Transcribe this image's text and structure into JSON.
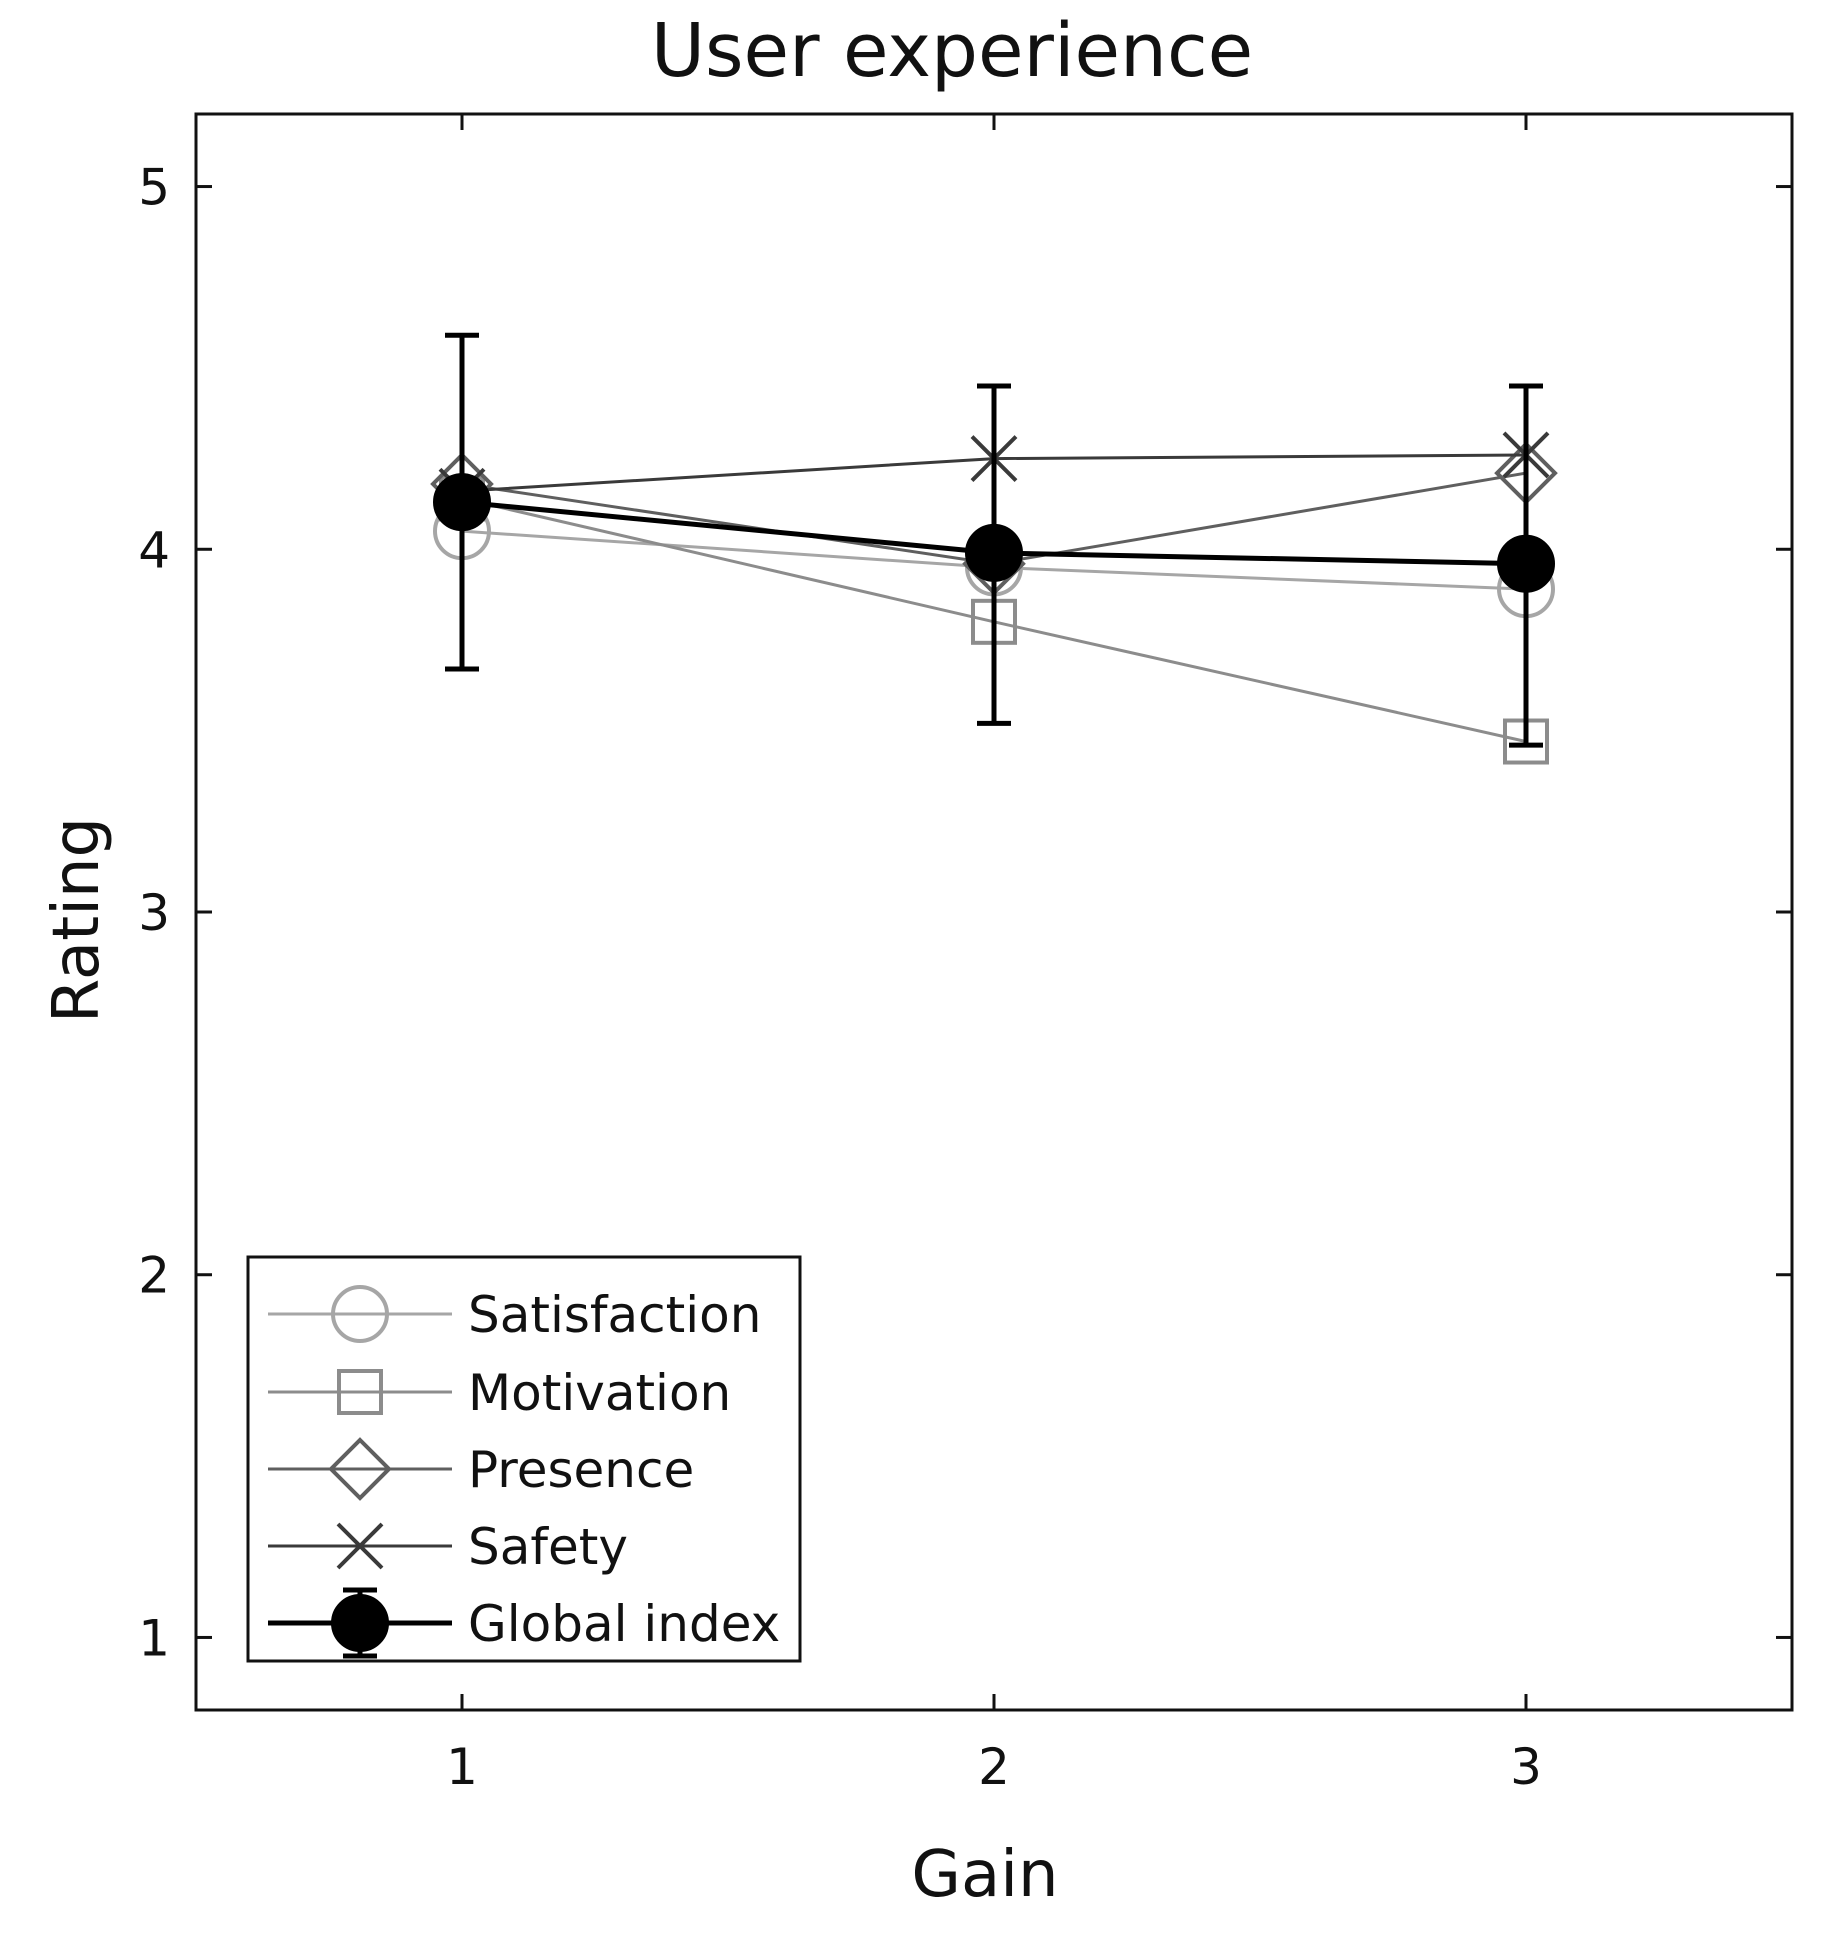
{
  "chart_data": {
    "type": "line",
    "title": "User experience",
    "xlabel": "Gain",
    "ylabel": "Rating",
    "x": [
      1,
      2,
      3
    ],
    "xlim": [
      0.5,
      3.5
    ],
    "ylim": [
      0.8,
      5.2
    ],
    "xticks": [
      "1",
      "2",
      "3"
    ],
    "yticks": [
      "1",
      "2",
      "3",
      "4",
      "5"
    ],
    "legend_position": "bottom-left",
    "grid": false,
    "series": [
      {
        "name": "Satisfaction",
        "values": [
          4.05,
          3.95,
          3.89
        ],
        "marker": "circle",
        "color": "#a6a6a6"
      },
      {
        "name": "Motivation",
        "values": [
          4.14,
          3.8,
          3.47
        ],
        "marker": "square",
        "color": "#8c8c8c"
      },
      {
        "name": "Presence",
        "values": [
          4.18,
          3.96,
          4.21
        ],
        "marker": "diamond",
        "color": "#5f5f5f"
      },
      {
        "name": "Safety",
        "values": [
          4.16,
          4.25,
          4.26
        ],
        "marker": "x",
        "color": "#3a3a3a"
      },
      {
        "name": "Global index",
        "values": [
          4.13,
          3.99,
          3.96
        ],
        "marker": "filled-circle",
        "color": "#000000",
        "error_low": [
          3.67,
          3.52,
          3.46
        ],
        "error_high": [
          4.59,
          4.45,
          4.45
        ]
      }
    ]
  }
}
